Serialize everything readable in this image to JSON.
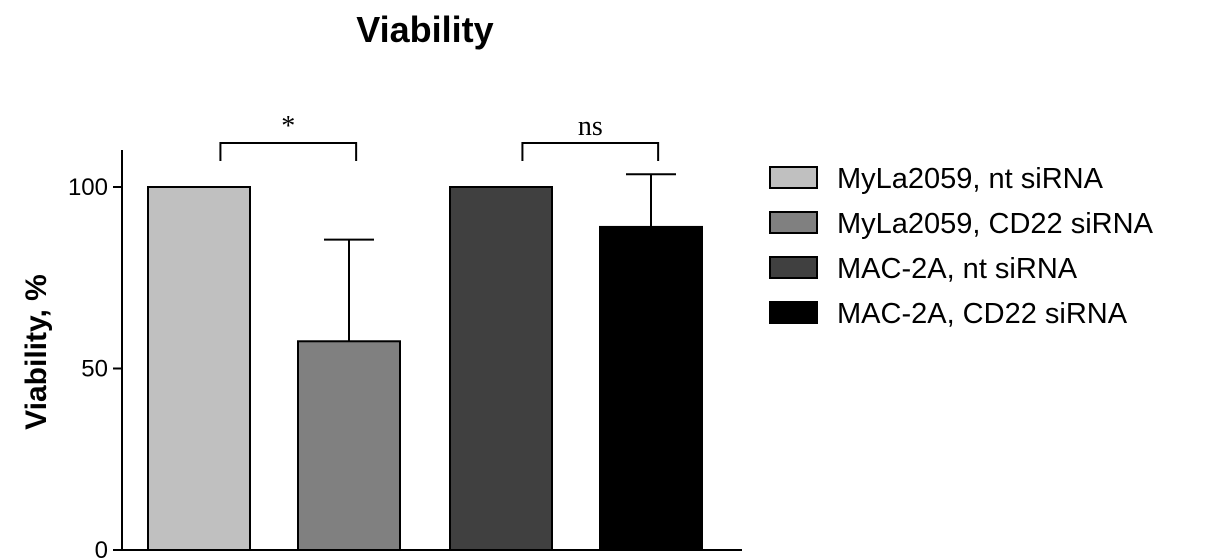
{
  "chart_data": {
    "type": "bar",
    "title": "Viability",
    "xlabel": "",
    "ylabel": "Viability, %",
    "ylim": [
      0,
      110
    ],
    "yticks": [
      "0",
      "50",
      "100"
    ],
    "grid": false,
    "legend_position": "right",
    "categories": [
      "MyLa2059, nt siRNA",
      "MyLa2059, CD22 siRNA",
      "MAC-2A, nt siRNA",
      "MAC-2A, CD22 siRNA"
    ],
    "values": [
      100,
      57.5,
      100,
      89
    ],
    "errors": [
      0,
      28,
      0,
      14.5
    ],
    "colors": [
      "#c0c0c0",
      "#808080",
      "#404040",
      "#000000"
    ],
    "significance": [
      {
        "between": [
          0,
          1
        ],
        "label": "*"
      },
      {
        "between": [
          2,
          3
        ],
        "label": "ns"
      }
    ]
  }
}
